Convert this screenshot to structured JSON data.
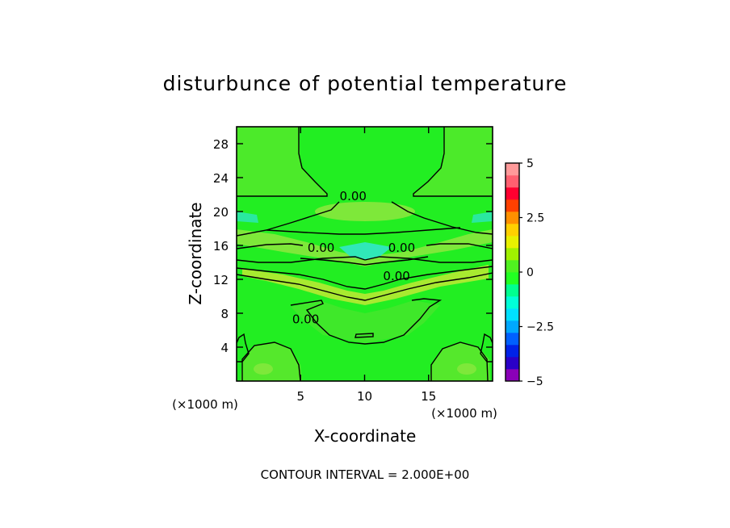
{
  "chart_data": {
    "type": "heatmap",
    "title": "disturbunce of potential temperature",
    "xlabel": "X-coordinate",
    "ylabel": "Z-coordinate",
    "x_unit": "(×1000 m)",
    "y_unit": "(×1000 m)",
    "xlim": [
      0,
      20
    ],
    "ylim": [
      0,
      30
    ],
    "xticks": [
      5,
      10,
      15
    ],
    "yticks": [
      4,
      8,
      12,
      16,
      20,
      24,
      28
    ],
    "contour_labels": [
      {
        "text": "0.00",
        "x": 9.1,
        "z": 21.9
      },
      {
        "text": "0.00",
        "x": 6.6,
        "z": 15.8
      },
      {
        "text": "0.00",
        "x": 12.9,
        "z": 15.8
      },
      {
        "text": "0.00",
        "x": 12.5,
        "z": 12.5
      },
      {
        "text": "0.00",
        "x": 5.4,
        "z": 7.4
      }
    ],
    "contour_interval_text": "CONTOUR INTERVAL = 2.000E+00",
    "colorbar": {
      "min": -5,
      "max": 5,
      "ticks": [
        5,
        2.5,
        0,
        -2.5,
        -5
      ],
      "tick_labels": [
        "5",
        "2.5",
        "0",
        "−2.5",
        "−5"
      ],
      "colors": [
        "#8a00b8",
        "#2a00c8",
        "#0022e8",
        "#0060ff",
        "#00a8ff",
        "#00e0ff",
        "#00ffd8",
        "#00ff90",
        "#22ff22",
        "#50f020",
        "#a0f000",
        "#e8f000",
        "#ffd000",
        "#ff9000",
        "#ff4000",
        "#ff0030",
        "#ff6070",
        "#ff9a9a"
      ]
    },
    "background_color": "#22ee22",
    "line_color": "#000000"
  }
}
